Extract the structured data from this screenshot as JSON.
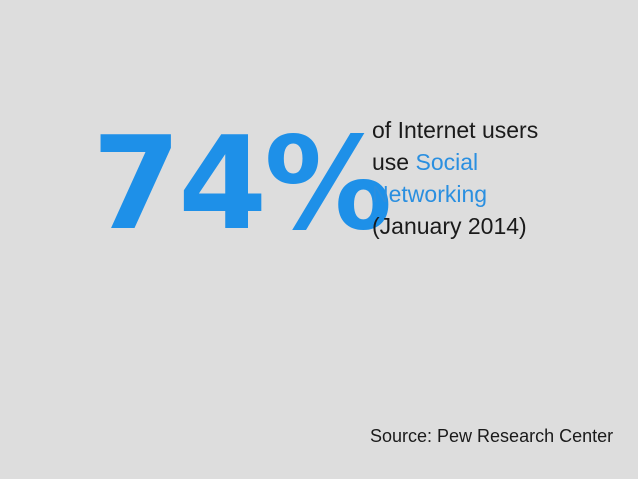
{
  "stat": {
    "value": "74%",
    "color": "#1e90e8"
  },
  "caption": {
    "line1": "of Internet users",
    "line2_prefix": "use ",
    "line2_accent": "Social",
    "line3_accent": "Networking",
    "line4": "(January 2014)",
    "accent_color": "#2a8fe0"
  },
  "source": {
    "text": "Source: Pew Research Center"
  }
}
